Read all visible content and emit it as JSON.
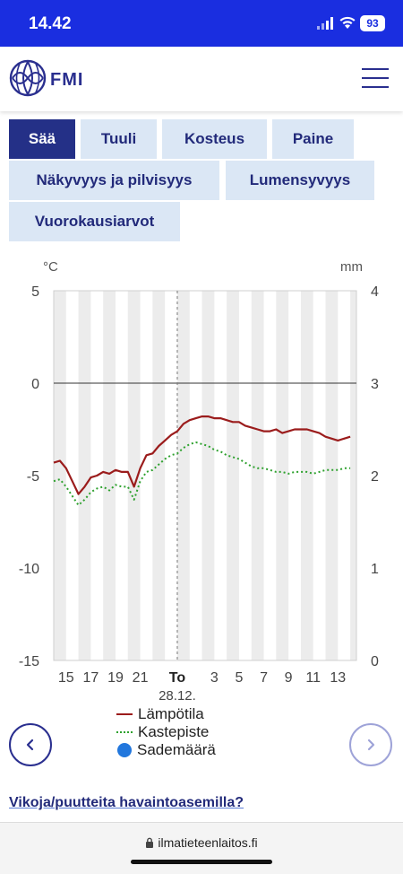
{
  "status_bar": {
    "time": "14.42",
    "battery": "93"
  },
  "header": {
    "logo_text": "FMI"
  },
  "tabs": [
    {
      "label": "Sää",
      "active": true
    },
    {
      "label": "Tuuli",
      "active": false
    },
    {
      "label": "Kosteus",
      "active": false
    },
    {
      "label": "Paine",
      "active": false
    },
    {
      "label": "Näkyvyys ja pilvisyys",
      "active": false
    },
    {
      "label": "Lumensyvyys",
      "active": false
    },
    {
      "label": "Vuorokausiarvot",
      "active": false
    }
  ],
  "chart_data": {
    "type": "line",
    "y_left_unit": "°C",
    "y_right_unit": "mm",
    "y_left_range": [
      -15,
      5
    ],
    "y_right_range": [
      0,
      4
    ],
    "y_left_ticks": [
      "5",
      "0",
      "-5",
      "-10",
      "-15"
    ],
    "y_right_ticks": [
      "4",
      "3",
      "2",
      "1",
      "0"
    ],
    "x_ticks": [
      "15",
      "17",
      "19",
      "21",
      "To",
      "3",
      "5",
      "7",
      "9",
      "11",
      "13"
    ],
    "x_subtick": "28.12.",
    "grid": "alternating hourly bands",
    "legend_position": "bottom",
    "series": [
      {
        "name": "Lämpötila",
        "color": "#9b1c1c",
        "style": "solid",
        "t_hours": [
          14,
          14.5,
          15,
          15.5,
          16,
          16.5,
          17,
          17.5,
          18,
          18.5,
          19,
          19.5,
          20,
          20.5,
          21,
          21.5,
          22,
          22.5,
          23,
          23.5,
          24,
          24.5,
          25,
          25.5,
          26,
          26.5,
          27,
          27.5,
          28,
          28.5,
          29,
          29.5,
          30,
          30.5,
          31,
          31.5,
          32,
          32.5,
          33,
          33.5,
          34,
          34.5,
          35,
          35.5,
          36,
          36.5,
          37,
          37.5,
          38
        ],
        "values": [
          -4.3,
          -4.2,
          -4.6,
          -5.3,
          -6.0,
          -5.6,
          -5.1,
          -5.0,
          -4.8,
          -4.9,
          -4.7,
          -4.8,
          -4.8,
          -5.6,
          -4.6,
          -3.9,
          -3.8,
          -3.4,
          -3.1,
          -2.8,
          -2.6,
          -2.2,
          -2.0,
          -1.9,
          -1.8,
          -1.8,
          -1.9,
          -1.9,
          -2.0,
          -2.1,
          -2.1,
          -2.3,
          -2.4,
          -2.5,
          -2.6,
          -2.6,
          -2.5,
          -2.7,
          -2.6,
          -2.5,
          -2.5,
          -2.5,
          -2.6,
          -2.7,
          -2.9,
          -3.0,
          -3.1,
          -3.0,
          -2.9
        ]
      },
      {
        "name": "Kastepiste",
        "color": "#2ea12e",
        "style": "dotted",
        "t_hours": [
          14,
          14.5,
          15,
          15.5,
          16,
          16.5,
          17,
          17.5,
          18,
          18.5,
          19,
          19.5,
          20,
          20.5,
          21,
          21.5,
          22,
          22.5,
          23,
          23.5,
          24,
          24.5,
          25,
          25.5,
          26,
          26.5,
          27,
          27.5,
          28,
          28.5,
          29,
          29.5,
          30,
          30.5,
          31,
          31.5,
          32,
          32.5,
          33,
          33.5,
          34,
          34.5,
          35,
          35.5,
          36,
          36.5,
          37,
          37.5,
          38
        ],
        "values": [
          -5.3,
          -5.2,
          -5.6,
          -6.1,
          -6.6,
          -6.3,
          -5.9,
          -5.7,
          -5.6,
          -5.8,
          -5.5,
          -5.6,
          -5.6,
          -6.3,
          -5.3,
          -4.8,
          -4.7,
          -4.4,
          -4.1,
          -3.9,
          -3.8,
          -3.5,
          -3.3,
          -3.2,
          -3.3,
          -3.4,
          -3.6,
          -3.7,
          -3.9,
          -4.0,
          -4.1,
          -4.3,
          -4.5,
          -4.6,
          -4.6,
          -4.7,
          -4.8,
          -4.8,
          -4.9,
          -4.8,
          -4.8,
          -4.8,
          -4.9,
          -4.8,
          -4.7,
          -4.7,
          -4.7,
          -4.6,
          -4.6
        ]
      },
      {
        "name": "Sademäärä",
        "color": "#2277dd",
        "style": "marker",
        "values": []
      }
    ],
    "day_divider_hour": 24
  },
  "nav": {
    "prev_icon": "chevron-left-icon",
    "next_icon": "chevron-right-icon"
  },
  "footer": {
    "link_text": "Vikoja/puutteita havaintoasemilla?"
  },
  "browser": {
    "url": "ilmatieteenlaitos.fi"
  }
}
